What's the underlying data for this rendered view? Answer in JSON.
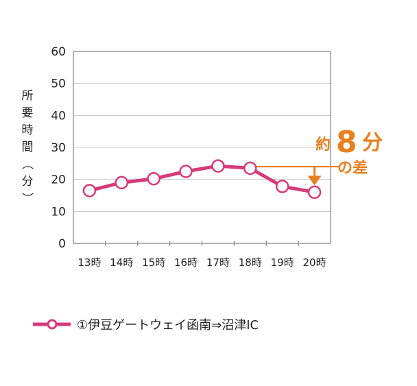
{
  "chart_data": {
    "type": "line",
    "ylabel": "所要時間（分）",
    "ylim": [
      0,
      60
    ],
    "yticks": [
      0,
      10,
      20,
      30,
      40,
      50,
      60
    ],
    "categories": [
      "13時",
      "14時",
      "15時",
      "16時",
      "17時",
      "18時",
      "19時",
      "20時"
    ],
    "series": [
      {
        "name": "①伊豆ゲートウェイ函南⇒沼津IC",
        "values": [
          16.5,
          19,
          20.2,
          22.5,
          24.2,
          23.5,
          17.8,
          16
        ],
        "color": "#d63a7a"
      }
    ],
    "grid": true,
    "legend": "bottom",
    "annotation": {
      "prefix": "約",
      "number": "8",
      "unit": "分",
      "suffix": "の差",
      "color": "#e8801e",
      "from_value": 24.2,
      "to_value": 16
    }
  }
}
